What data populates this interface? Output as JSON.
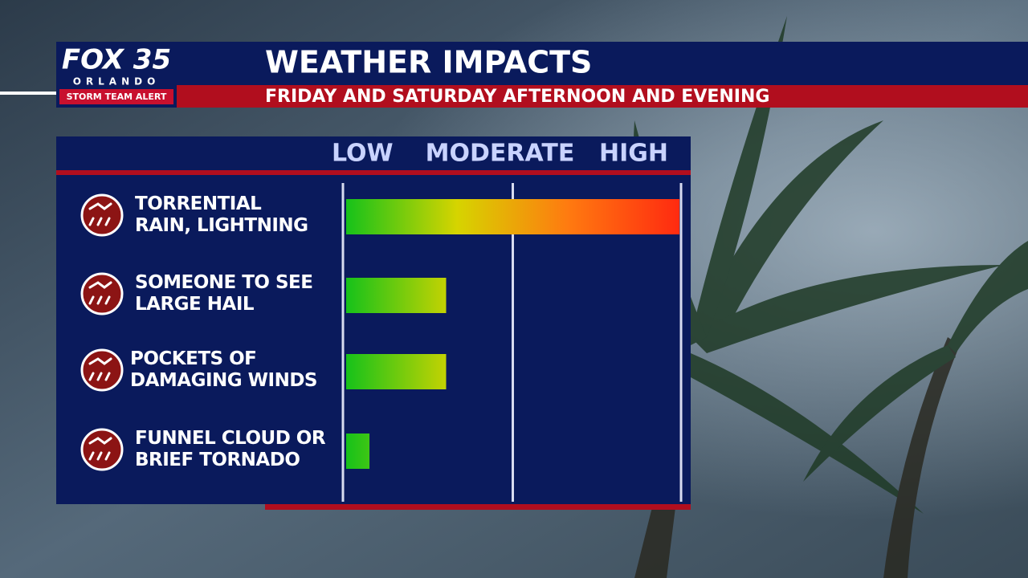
{
  "header": {
    "logo": "FOX 35",
    "logo_city": "ORLANDO",
    "logo_badge": "STORM TEAM ALERT"
  },
  "chart_data": {
    "type": "bar",
    "orientation": "horizontal",
    "title": "WEATHER IMPACTS",
    "subtitle": "FRIDAY AND SATURDAY AFTERNOON AND EVENING",
    "categories": [
      "TORRENTIAL\nRAIN, LIGHTNING",
      "SOMEONE TO SEE\nLARGE HAIL",
      "POCKETS OF\nDAMAGING WINDS",
      "FUNNEL CLOUD OR\nBRIEF TORNADO"
    ],
    "values": [
      100,
      30,
      30,
      7
    ],
    "xlim": [
      0,
      100
    ],
    "xticks": [
      {
        "value": 0,
        "label": "LOW"
      },
      {
        "value": 50,
        "label": "MODERATE"
      },
      {
        "value": 100,
        "label": "HIGH"
      }
    ],
    "grid": true,
    "gradient": [
      "#16c21a",
      "#d6d400",
      "#ff7a10",
      "#ff2a10"
    ]
  }
}
